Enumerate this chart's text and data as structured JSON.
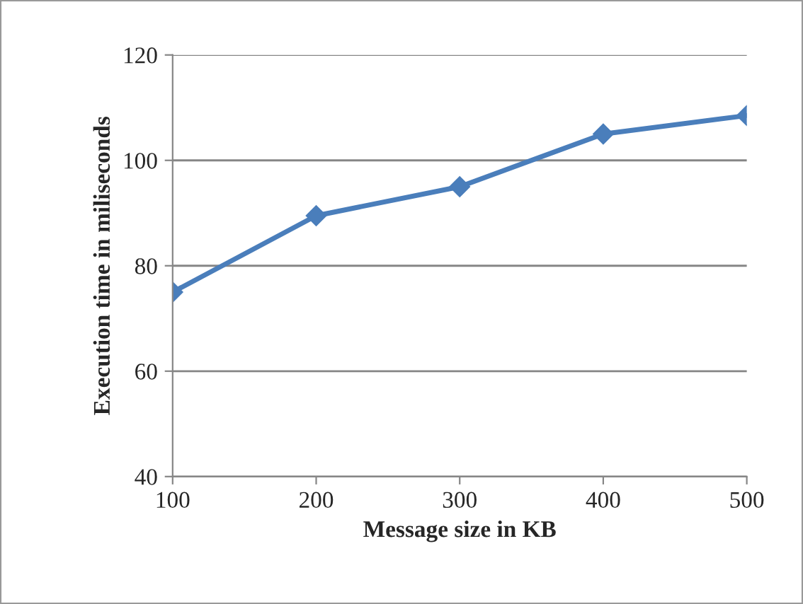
{
  "chart_data": {
    "type": "line",
    "xlabel": "Message size in KB",
    "ylabel": "Execution time in miliseconds",
    "categories": [
      "100",
      "200",
      "300",
      "400",
      "500"
    ],
    "series": [
      {
        "color": "#4a7ebb",
        "values": [
          75,
          89.5,
          95,
          105,
          108.5
        ]
      }
    ],
    "ylim": [
      40,
      120
    ],
    "yticks": [
      40,
      60,
      80,
      100,
      120
    ],
    "grid": "y",
    "marker": "diamond",
    "line_style": "solid",
    "legend": false
  }
}
